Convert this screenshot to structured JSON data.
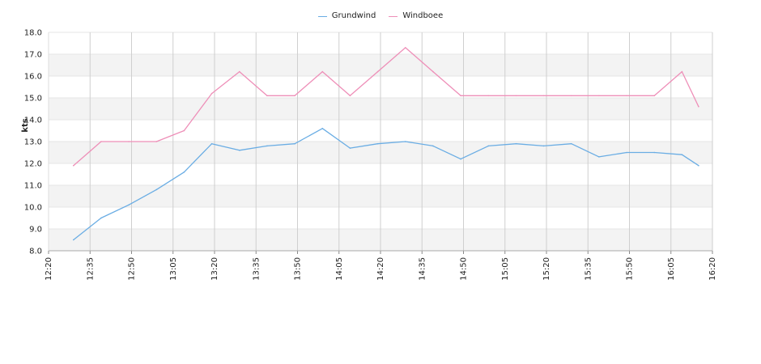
{
  "chart_data": {
    "type": "line",
    "title": "",
    "xlabel": "",
    "ylabel": "kts",
    "ylim": [
      8.0,
      18.0
    ],
    "y_ticks": [
      "8.0",
      "9.0",
      "10.0",
      "11.0",
      "12.0",
      "13.0",
      "14.0",
      "15.0",
      "16.0",
      "17.0",
      "18.0"
    ],
    "x_range": [
      "12:20",
      "16:20"
    ],
    "x_ticks": [
      "12:20",
      "12:35",
      "12:50",
      "13:05",
      "13:20",
      "13:35",
      "13:50",
      "14:05",
      "14:20",
      "14:35",
      "14:50",
      "15:05",
      "15:20",
      "15:35",
      "15:50",
      "16:05",
      "16:20"
    ],
    "x": [
      "12:29",
      "12:39",
      "12:49",
      "12:59",
      "13:09",
      "13:19",
      "13:29",
      "13:39",
      "13:49",
      "13:59",
      "14:09",
      "14:19",
      "14:29",
      "14:39",
      "14:49",
      "14:59",
      "15:09",
      "15:19",
      "15:29",
      "15:39",
      "15:49",
      "15:59",
      "16:09",
      "16:15"
    ],
    "grid": true,
    "legend_position": "top-center",
    "series": [
      {
        "name": "Grundwind",
        "color": "#6aade4",
        "values": [
          8.5,
          9.5,
          10.1,
          10.8,
          11.6,
          12.9,
          12.6,
          12.8,
          12.9,
          13.6,
          12.7,
          12.9,
          13.0,
          12.8,
          12.2,
          12.8,
          12.9,
          12.8,
          12.9,
          12.3,
          12.5,
          12.5,
          12.4,
          11.9
        ]
      },
      {
        "name": "Windboee",
        "color": "#ee8fb8",
        "values": [
          11.9,
          13.0,
          13.0,
          13.0,
          13.5,
          15.2,
          16.2,
          15.1,
          15.1,
          16.2,
          15.1,
          16.2,
          17.3,
          16.2,
          15.1,
          15.1,
          15.1,
          15.1,
          15.1,
          15.1,
          15.1,
          15.1,
          16.2,
          14.6
        ]
      }
    ]
  }
}
